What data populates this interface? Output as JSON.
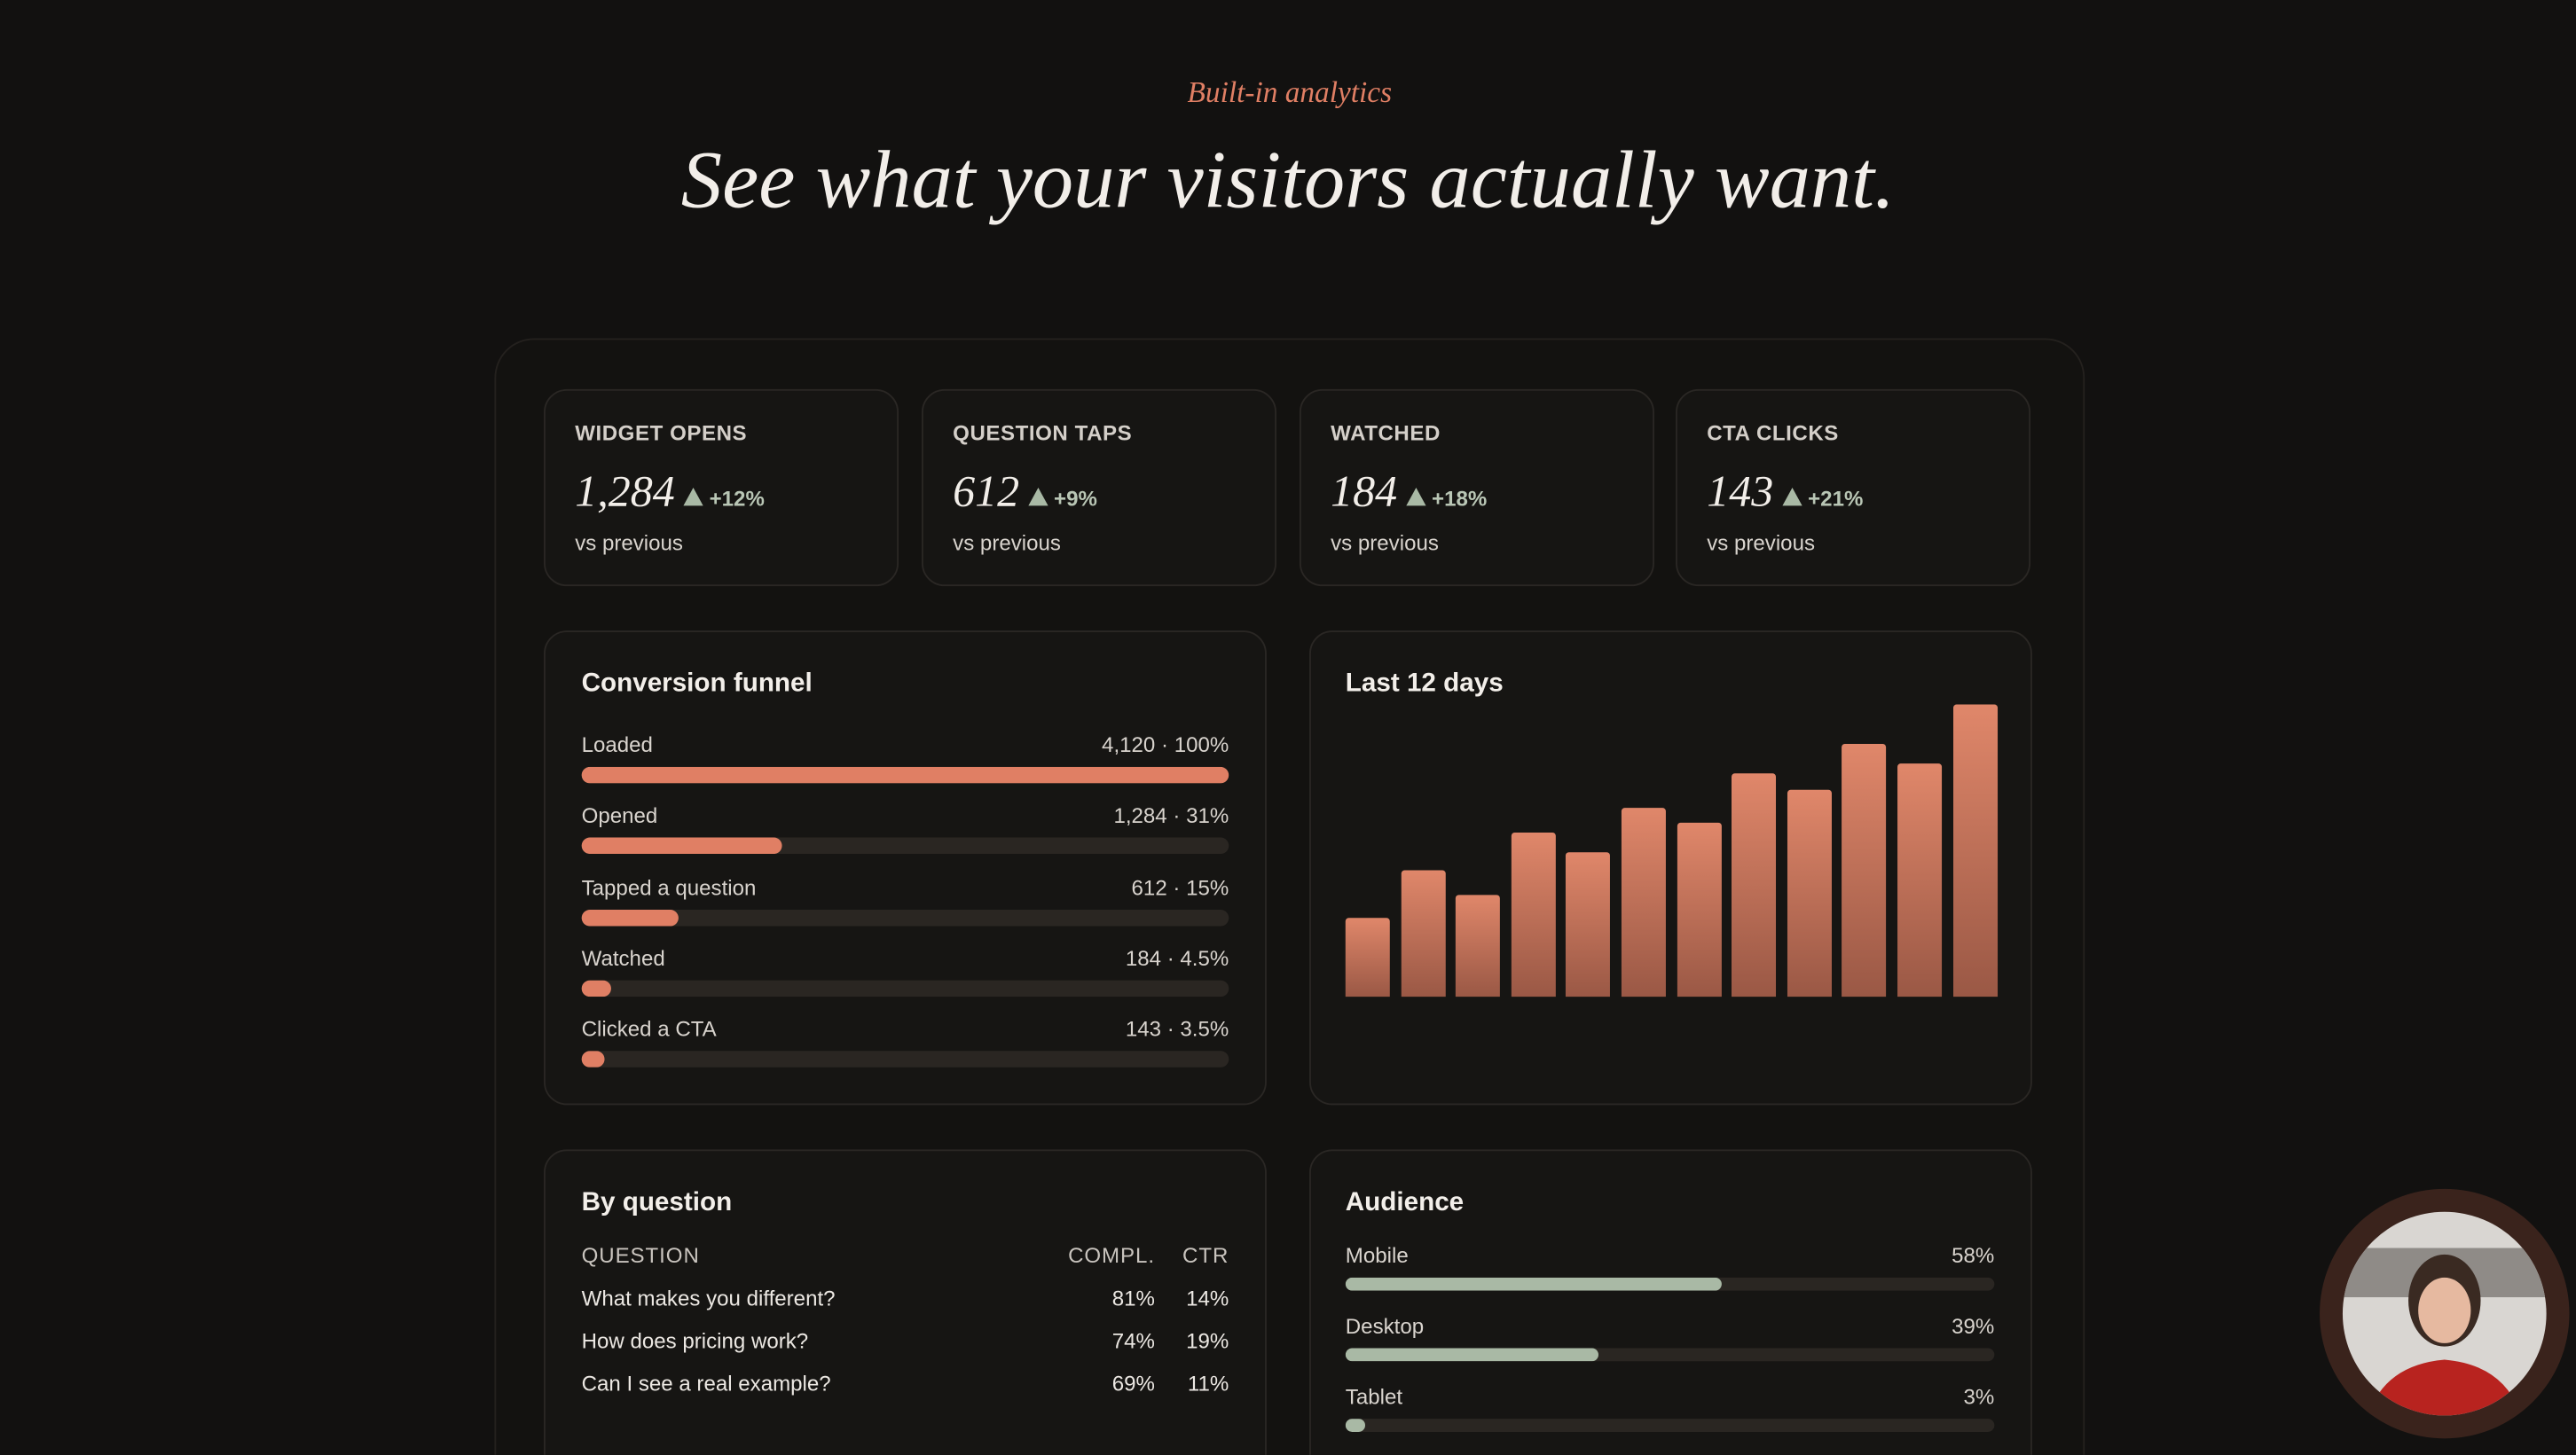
{
  "header": {
    "eyebrow": "Built-in analytics",
    "title": "See what your visitors actually want."
  },
  "stats": [
    {
      "label": "WIDGET OPENS",
      "value": "1,284",
      "change": "+12%",
      "note": "vs previous"
    },
    {
      "label": "QUESTION TAPS",
      "value": "612",
      "change": "+9%",
      "note": "vs previous"
    },
    {
      "label": "WATCHED",
      "value": "184",
      "change": "+18%",
      "note": "vs previous"
    },
    {
      "label": "CTA CLICKS",
      "value": "143",
      "change": "+21%",
      "note": "vs previous"
    }
  ],
  "funnel": {
    "title": "Conversion funnel",
    "xlim": [
      0,
      100
    ],
    "color": "#e07f64",
    "rows": [
      {
        "label": "Loaded",
        "value": 100,
        "value_label": "4,120 · 100%"
      },
      {
        "label": "Opened",
        "value": 31,
        "value_label": "1,284 · 31%"
      },
      {
        "label": "Tapped a question",
        "value": 15,
        "value_label": "612 · 15%"
      },
      {
        "label": "Watched",
        "value": 4.5,
        "value_label": "184 · 4.5%"
      },
      {
        "label": "Clicked a CTA",
        "value": 3.5,
        "value_label": "143 · 3.5%"
      }
    ]
  },
  "chart_data": {
    "type": "bar",
    "title": "Last 12 days",
    "values": [
      48,
      77,
      62,
      100,
      88,
      115,
      106,
      136,
      126,
      154,
      142,
      178
    ],
    "ylim": [
      0,
      178
    ],
    "color": "#e0876a"
  },
  "questions": {
    "title": "By question",
    "columns": [
      "QUESTION",
      "COMPL.",
      "CTR"
    ],
    "rows": [
      [
        "What makes you different?",
        "81%",
        "14%"
      ],
      [
        "How does pricing work?",
        "74%",
        "19%"
      ],
      [
        "Can I see a real example?",
        "69%",
        "11%"
      ]
    ]
  },
  "audience": {
    "title": "Audience",
    "xlim": [
      0,
      100
    ],
    "color": "#a9b9a5",
    "rows": [
      {
        "label": "Mobile",
        "value": 58,
        "value_label": "58%"
      },
      {
        "label": "Desktop",
        "value": 39,
        "value_label": "39%"
      },
      {
        "label": "Tablet",
        "value": 3,
        "value_label": "3%"
      }
    ]
  }
}
